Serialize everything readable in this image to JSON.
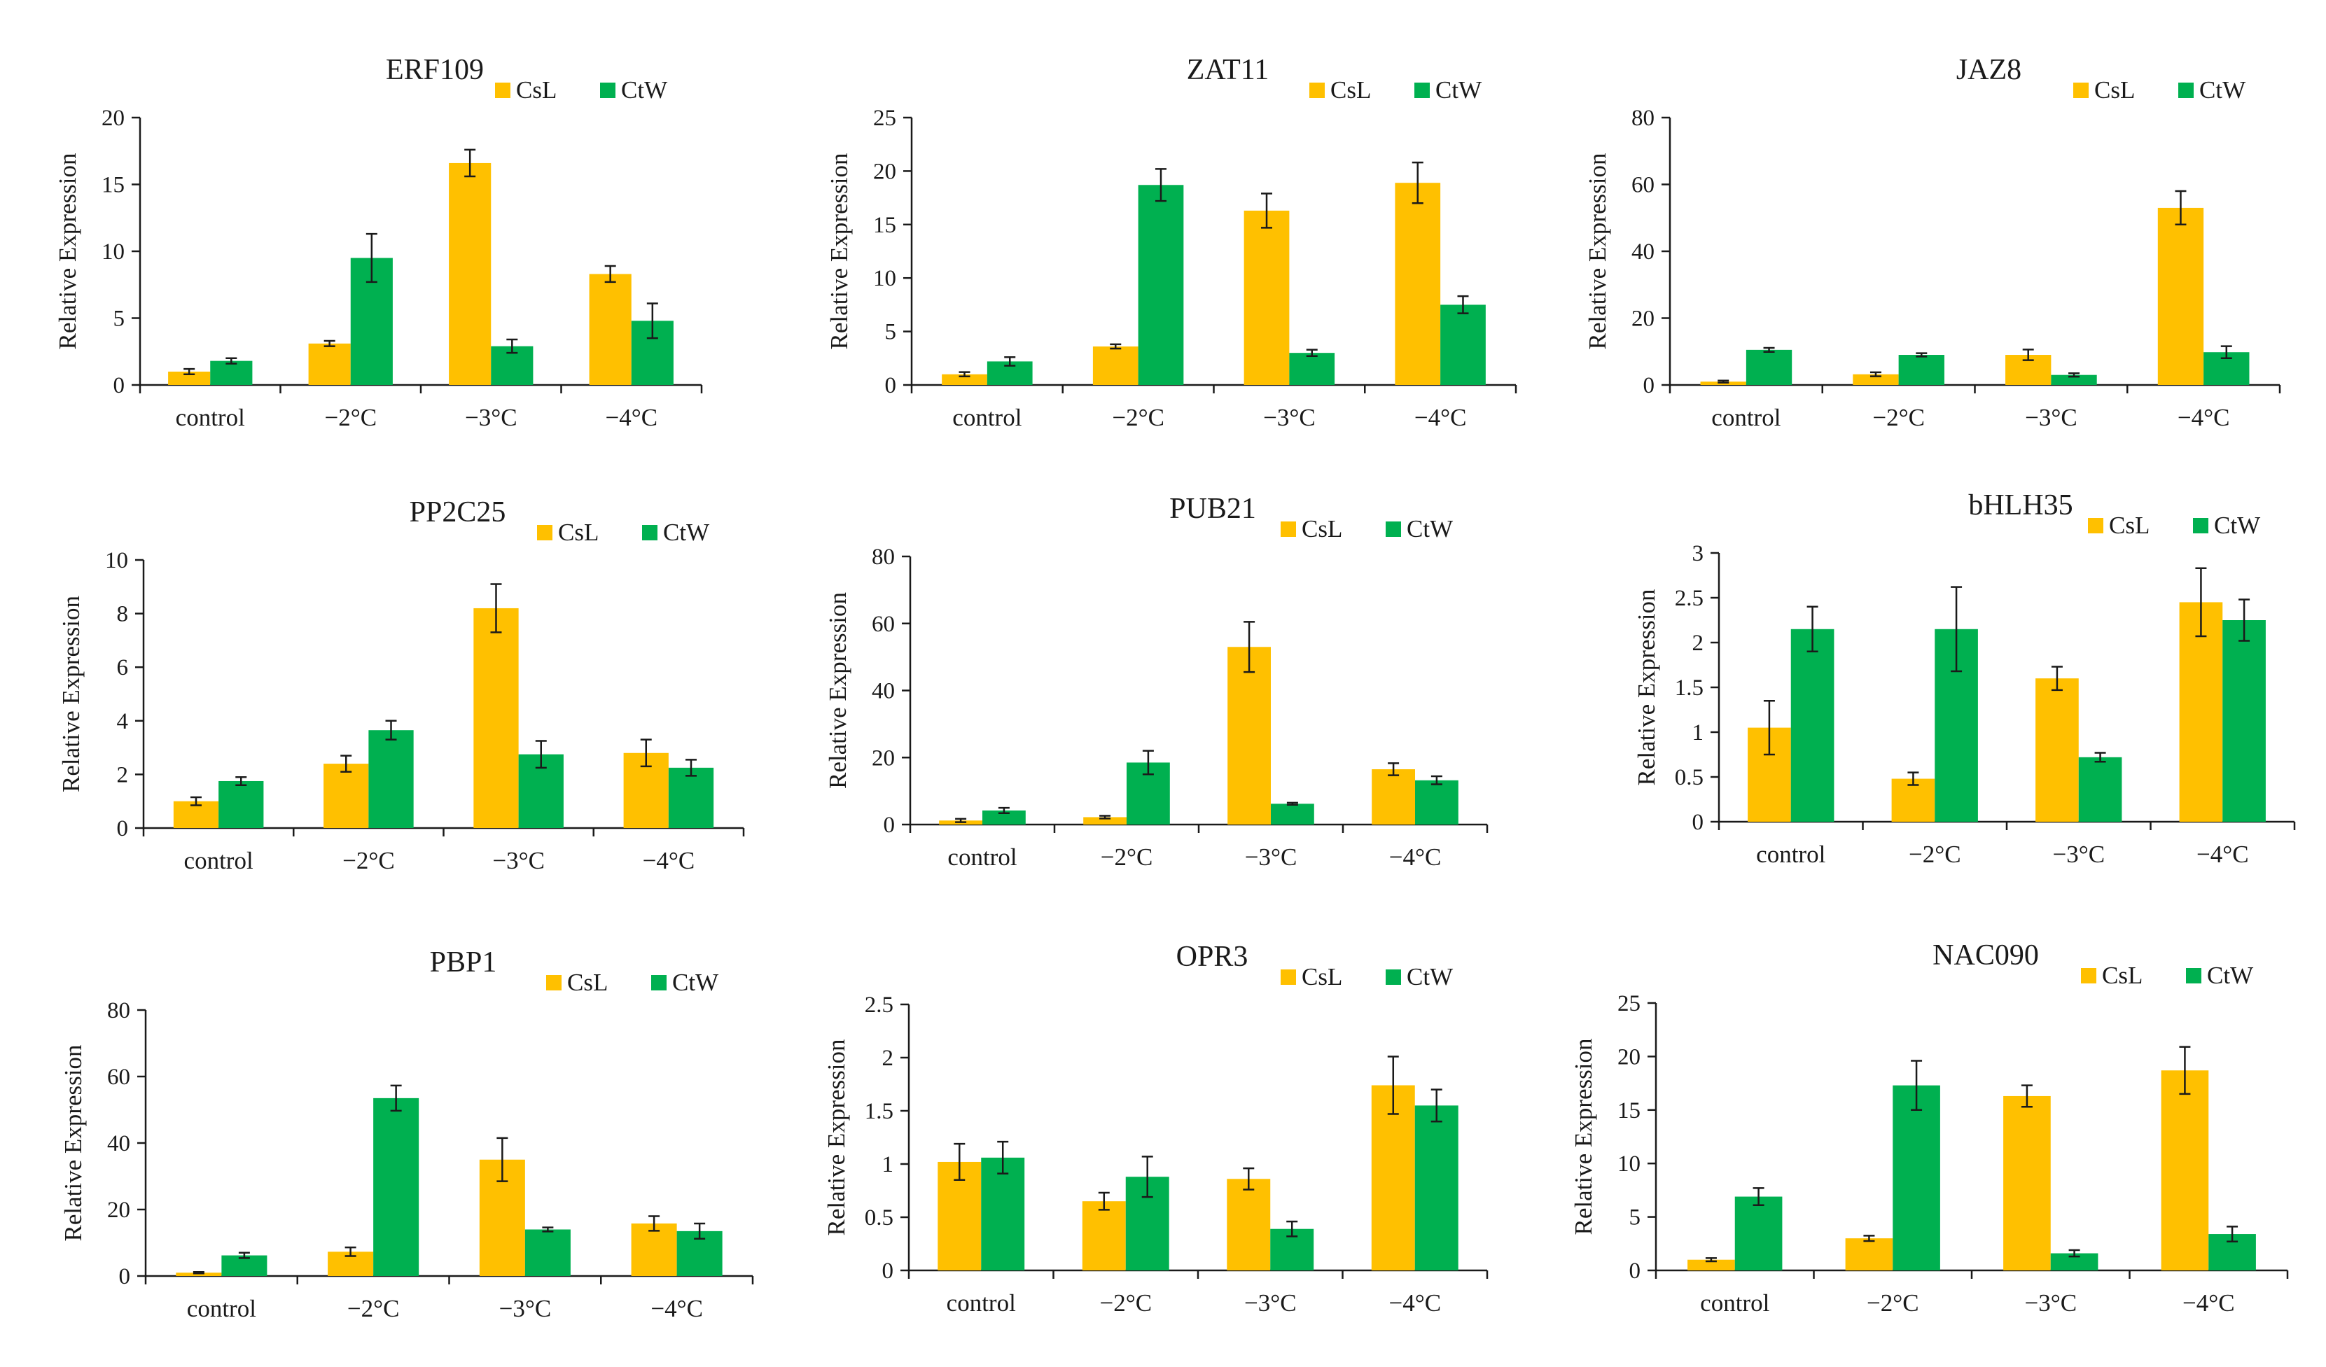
{
  "colors": {
    "CsL": "#FFC000",
    "CtW": "#00B050",
    "axis": "#1a1a1a"
  },
  "chart_data": [
    {
      "type": "bar",
      "title": "ERF109",
      "ylabel": "Relative Expression",
      "xlabel": "",
      "categories": [
        "control",
        "−2°C",
        "−3°C",
        "−4°C"
      ],
      "ylim": [
        0,
        20
      ],
      "yticks": [
        0,
        5,
        10,
        15,
        20
      ],
      "series": [
        {
          "name": "CsL",
          "values": [
            1.0,
            3.1,
            16.6,
            8.3
          ],
          "errors": [
            0.2,
            0.2,
            1.0,
            0.6
          ]
        },
        {
          "name": "CtW",
          "values": [
            1.8,
            9.5,
            2.9,
            4.8
          ],
          "errors": [
            0.2,
            1.8,
            0.5,
            1.3
          ]
        }
      ]
    },
    {
      "type": "bar",
      "title": "ZAT11",
      "ylabel": "Relative Expression",
      "xlabel": "",
      "categories": [
        "control",
        "−2°C",
        "−3°C",
        "−4°C"
      ],
      "ylim": [
        0,
        25
      ],
      "yticks": [
        0,
        5,
        10,
        15,
        20,
        25
      ],
      "series": [
        {
          "name": "CsL",
          "values": [
            1.0,
            3.6,
            16.3,
            18.9
          ],
          "errors": [
            0.2,
            0.2,
            1.6,
            1.9
          ]
        },
        {
          "name": "CtW",
          "values": [
            2.2,
            18.7,
            3.0,
            7.5
          ],
          "errors": [
            0.4,
            1.5,
            0.3,
            0.8
          ]
        }
      ]
    },
    {
      "type": "bar",
      "title": "JAZ8",
      "ylabel": "Relative Expression",
      "xlabel": "",
      "categories": [
        "control",
        "−2°C",
        "−3°C",
        "−4°C"
      ],
      "ylim": [
        0,
        80
      ],
      "yticks": [
        0,
        20,
        40,
        60,
        80
      ],
      "series": [
        {
          "name": "CsL",
          "values": [
            1.0,
            3.2,
            9.0,
            53.0
          ],
          "errors": [
            0.3,
            0.6,
            1.6,
            5.0
          ]
        },
        {
          "name": "CtW",
          "values": [
            10.5,
            9.0,
            3.0,
            9.8
          ],
          "errors": [
            0.6,
            0.5,
            0.5,
            1.8
          ]
        }
      ]
    },
    {
      "type": "bar",
      "title": "PP2C25",
      "ylabel": "Relative Expression",
      "xlabel": "",
      "categories": [
        "control",
        "−2°C",
        "−3°C",
        "−4°C"
      ],
      "ylim": [
        0,
        10
      ],
      "yticks": [
        0,
        2,
        4,
        6,
        8,
        10
      ],
      "series": [
        {
          "name": "CsL",
          "values": [
            1.0,
            2.4,
            8.2,
            2.8
          ],
          "errors": [
            0.15,
            0.3,
            0.9,
            0.5
          ]
        },
        {
          "name": "CtW",
          "values": [
            1.75,
            3.65,
            2.75,
            2.25
          ],
          "errors": [
            0.15,
            0.35,
            0.5,
            0.3
          ]
        }
      ]
    },
    {
      "type": "bar",
      "title": "PUB21",
      "ylabel": "Relative Expression",
      "xlabel": "",
      "categories": [
        "control",
        "−2°C",
        "−3°C",
        "−4°C"
      ],
      "ylim": [
        0,
        80
      ],
      "yticks": [
        0,
        20,
        40,
        60,
        80
      ],
      "series": [
        {
          "name": "CsL",
          "values": [
            1.2,
            2.2,
            53.0,
            16.5
          ],
          "errors": [
            0.5,
            0.4,
            7.5,
            1.8
          ]
        },
        {
          "name": "CtW",
          "values": [
            4.2,
            18.5,
            6.2,
            13.2
          ],
          "errors": [
            0.8,
            3.5,
            0.3,
            1.2
          ]
        }
      ]
    },
    {
      "type": "bar",
      "title": "bHLH35",
      "ylabel": "Relative Expression",
      "xlabel": "",
      "categories": [
        "control",
        "−2°C",
        "−3°C",
        "−4°C"
      ],
      "ylim": [
        0,
        3
      ],
      "yticks": [
        0,
        0.5,
        1,
        1.5,
        2,
        2.5,
        3
      ],
      "series": [
        {
          "name": "CsL",
          "values": [
            1.05,
            0.48,
            1.6,
            2.45
          ],
          "errors": [
            0.3,
            0.07,
            0.13,
            0.38
          ]
        },
        {
          "name": "CtW",
          "values": [
            2.15,
            2.15,
            0.72,
            2.25
          ],
          "errors": [
            0.25,
            0.47,
            0.05,
            0.23
          ]
        }
      ]
    },
    {
      "type": "bar",
      "title": "PBP1",
      "ylabel": "Relative Expression",
      "xlabel": "",
      "categories": [
        "control",
        "−2°C",
        "−3°C",
        "−4°C"
      ],
      "ylim": [
        0,
        80
      ],
      "yticks": [
        0,
        20,
        40,
        60,
        80
      ],
      "series": [
        {
          "name": "CsL",
          "values": [
            1.0,
            7.3,
            35.0,
            15.8
          ],
          "errors": [
            0.2,
            1.3,
            6.5,
            2.2
          ]
        },
        {
          "name": "CtW",
          "values": [
            6.2,
            53.5,
            14.0,
            13.5
          ],
          "errors": [
            0.8,
            3.8,
            0.6,
            2.3
          ]
        }
      ]
    },
    {
      "type": "bar",
      "title": "OPR3",
      "ylabel": "Relative Expression",
      "xlabel": "",
      "categories": [
        "control",
        "−2°C",
        "−3°C",
        "−4°C"
      ],
      "ylim": [
        0,
        2.5
      ],
      "yticks": [
        0,
        0.5,
        1,
        1.5,
        2,
        2.5
      ],
      "series": [
        {
          "name": "CsL",
          "values": [
            1.02,
            0.65,
            0.86,
            1.74
          ],
          "errors": [
            0.17,
            0.08,
            0.1,
            0.27
          ]
        },
        {
          "name": "CtW",
          "values": [
            1.06,
            0.88,
            0.39,
            1.55
          ],
          "errors": [
            0.15,
            0.19,
            0.07,
            0.15
          ]
        }
      ]
    },
    {
      "type": "bar",
      "title": "NAC090",
      "ylabel": "Relative Expression",
      "xlabel": "",
      "categories": [
        "control",
        "−2°C",
        "−3°C",
        "−4°C"
      ],
      "ylim": [
        0,
        25
      ],
      "yticks": [
        0,
        5,
        10,
        15,
        20,
        25
      ],
      "series": [
        {
          "name": "CsL",
          "values": [
            1.0,
            3.0,
            16.3,
            18.7
          ],
          "errors": [
            0.15,
            0.25,
            1.0,
            2.2
          ]
        },
        {
          "name": "CtW",
          "values": [
            6.9,
            17.3,
            1.6,
            3.4
          ],
          "errors": [
            0.8,
            2.3,
            0.3,
            0.7
          ]
        }
      ]
    }
  ]
}
